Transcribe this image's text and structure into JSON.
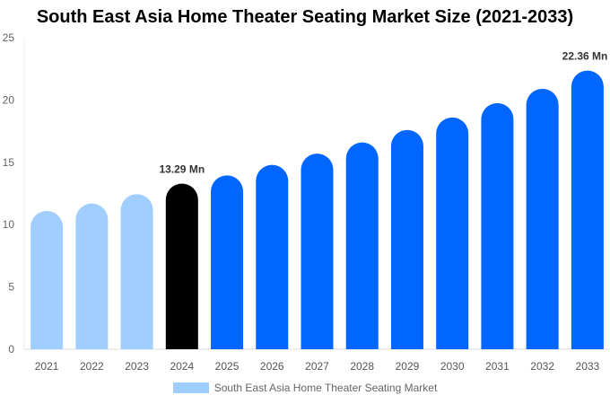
{
  "chart_data": {
    "type": "bar",
    "title": "South East Asia Home Theater Seating Market Size (2021-2033)",
    "categories": [
      "2021",
      "2022",
      "2023",
      "2024",
      "2025",
      "2026",
      "2027",
      "2028",
      "2029",
      "2030",
      "2031",
      "2032",
      "2033"
    ],
    "series": [
      {
        "name": "South East Asia Home Theater Seating Market",
        "values": [
          11.1,
          11.7,
          12.45,
          13.29,
          13.95,
          14.8,
          15.7,
          16.6,
          17.6,
          18.6,
          19.75,
          20.9,
          22.36
        ]
      }
    ],
    "data_labels": {
      "3": "13.29 Mn",
      "12": "22.36 Mn"
    },
    "yticks": [
      0,
      5,
      10,
      15,
      20,
      25
    ],
    "ylim": [
      0,
      25
    ],
    "grid": false,
    "legend_position": "bottom",
    "colors": {
      "historic": "#a0cfff",
      "base_year": "#000000",
      "forecast": "#0066ff"
    }
  }
}
